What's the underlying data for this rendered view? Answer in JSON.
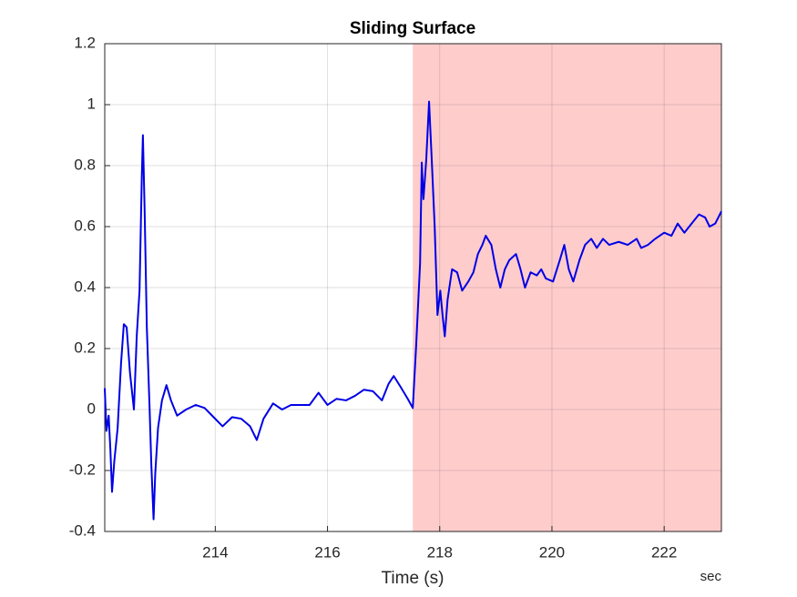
{
  "chart_data": {
    "type": "line",
    "title": "Sliding Surface",
    "xlabel": "Time (s)",
    "x_unit_label": "sec",
    "xlim": [
      212.03,
      223.02
    ],
    "ylim": [
      -0.4,
      1.2
    ],
    "xticks": [
      214,
      216,
      218,
      220,
      222
    ],
    "yticks": [
      -0.4,
      -0.2,
      0,
      0.2,
      0.4,
      0.6,
      0.8,
      1,
      1.2
    ],
    "grid": true,
    "shaded_region": {
      "x": [
        217.52,
        223.02
      ],
      "color": "#ffcccc"
    },
    "series": [
      {
        "color": "#0000e6",
        "x": [
          212.03,
          212.06,
          212.1,
          212.13,
          212.16,
          212.2,
          212.26,
          212.32,
          212.37,
          212.42,
          212.48,
          212.55,
          212.6,
          212.65,
          212.69,
          212.71,
          212.74,
          212.78,
          212.83,
          212.86,
          212.9,
          212.93,
          212.98,
          213.05,
          213.13,
          213.21,
          213.32,
          213.48,
          213.65,
          213.81,
          213.97,
          214.13,
          214.3,
          214.46,
          214.62,
          214.74,
          214.86,
          215.03,
          215.19,
          215.35,
          215.51,
          215.68,
          215.84,
          216.0,
          216.16,
          216.33,
          216.49,
          216.65,
          216.81,
          216.97,
          217.09,
          217.18,
          217.3,
          217.43,
          217.52,
          217.58,
          217.65,
          217.68,
          217.71,
          217.76,
          217.81,
          217.86,
          217.91,
          217.96,
          218.01,
          218.05,
          218.09,
          218.14,
          218.22,
          218.31,
          218.4,
          218.51,
          218.6,
          218.68,
          218.76,
          218.82,
          218.92,
          219.0,
          219.08,
          219.16,
          219.24,
          219.36,
          219.44,
          219.52,
          219.62,
          219.73,
          219.81,
          219.89,
          220.02,
          220.14,
          220.22,
          220.3,
          220.38,
          220.49,
          220.59,
          220.7,
          220.8,
          220.91,
          221.02,
          221.19,
          221.35,
          221.51,
          221.59,
          221.71,
          221.84,
          222.0,
          222.13,
          222.24,
          222.36,
          222.49,
          222.62,
          222.73,
          222.81,
          222.91,
          223.02
        ],
        "values": [
          0.07,
          -0.07,
          -0.02,
          -0.13,
          -0.27,
          -0.17,
          -0.06,
          0.15,
          0.28,
          0.27,
          0.12,
          0.0,
          0.24,
          0.39,
          0.76,
          0.9,
          0.66,
          0.27,
          0.0,
          -0.18,
          -0.36,
          -0.21,
          -0.06,
          0.03,
          0.08,
          0.03,
          -0.02,
          0.0,
          0.015,
          0.005,
          -0.025,
          -0.055,
          -0.025,
          -0.03,
          -0.055,
          -0.1,
          -0.03,
          0.02,
          0.0,
          0.015,
          0.015,
          0.015,
          0.055,
          0.015,
          0.035,
          0.03,
          0.045,
          0.065,
          0.06,
          0.03,
          0.085,
          0.11,
          0.075,
          0.035,
          0.005,
          0.21,
          0.48,
          0.81,
          0.69,
          0.82,
          1.01,
          0.81,
          0.6,
          0.31,
          0.39,
          0.31,
          0.24,
          0.36,
          0.46,
          0.45,
          0.39,
          0.42,
          0.45,
          0.51,
          0.54,
          0.57,
          0.54,
          0.46,
          0.4,
          0.46,
          0.49,
          0.51,
          0.46,
          0.4,
          0.45,
          0.44,
          0.46,
          0.43,
          0.42,
          0.49,
          0.54,
          0.46,
          0.42,
          0.49,
          0.54,
          0.56,
          0.53,
          0.56,
          0.54,
          0.55,
          0.54,
          0.56,
          0.53,
          0.54,
          0.56,
          0.58,
          0.57,
          0.61,
          0.58,
          0.61,
          0.64,
          0.63,
          0.6,
          0.61,
          0.65
        ]
      }
    ]
  }
}
